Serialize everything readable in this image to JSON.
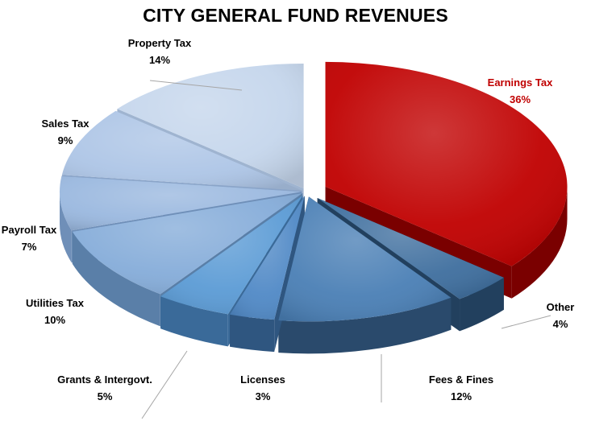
{
  "chart_data": {
    "type": "pie",
    "title": "CITY GENERAL FUND REVENUES",
    "exploded": true,
    "slices": [
      {
        "name": "Earnings Tax",
        "value": 36,
        "label": "36%",
        "color": "#c00000",
        "dark": "#7a0000"
      },
      {
        "name": "Other",
        "value": 4,
        "label": "4%",
        "color": "#3e6e9e",
        "dark": "#22405e"
      },
      {
        "name": "Fees & Fines",
        "value": 12,
        "label": "12%",
        "color": "#4a7fb5",
        "dark": "#2a4a6c"
      },
      {
        "name": "Licenses",
        "value": 3,
        "label": "3%",
        "color": "#5089c6",
        "dark": "#2f5680"
      },
      {
        "name": "Grants & Intergovt.",
        "value": 5,
        "label": "5%",
        "color": "#5b9bd5",
        "dark": "#3a6a99"
      },
      {
        "name": "Utilities Tax",
        "value": 10,
        "label": "10%",
        "color": "#85acd9",
        "dark": "#5a7fa8"
      },
      {
        "name": "Payroll Tax",
        "value": 7,
        "label": "7%",
        "color": "#9ab8df",
        "dark": "#6f8fb8"
      },
      {
        "name": "Sales Tax",
        "value": 9,
        "label": "9%",
        "color": "#adc5e6",
        "dark": "#8aa4c8"
      },
      {
        "name": "Property Tax",
        "value": 14,
        "label": "14%",
        "color": "#c5d6ec",
        "dark": "#9fb4d0"
      }
    ]
  }
}
